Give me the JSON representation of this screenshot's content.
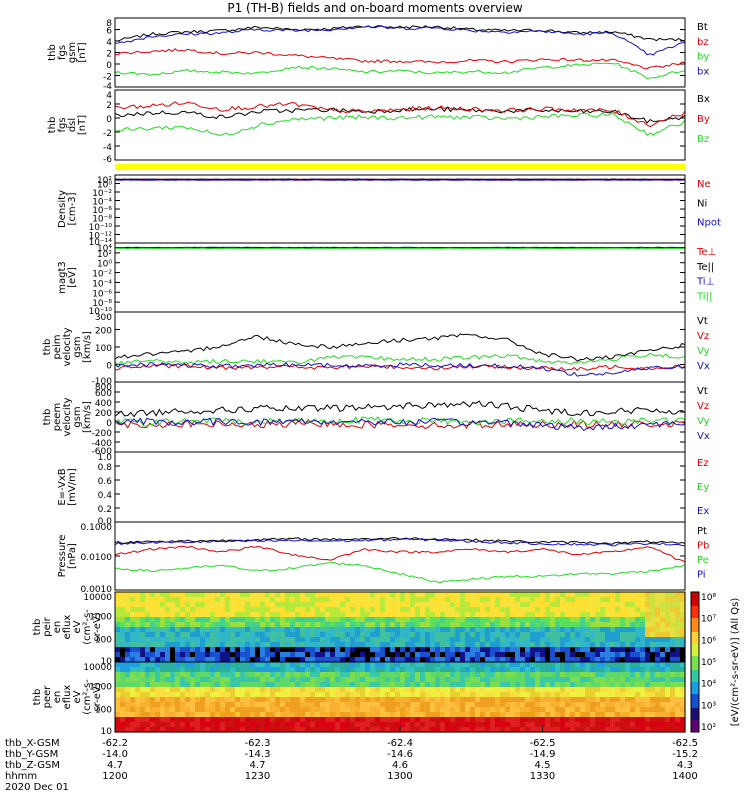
{
  "title": "P1 (TH-B) fields and on-board moments overview",
  "colors": {
    "black": "#000000",
    "red": "#e00000",
    "green": "#22dd22",
    "blue": "#1010cc",
    "yellow": "#ffff00"
  },
  "chart_data": [
    {
      "id": "fgs",
      "type": "line",
      "ylabel": [
        "thb",
        "fgs",
        "gsm",
        "[nT]"
      ],
      "yticks": [
        "8",
        "6",
        "4",
        "2",
        "0",
        "-2",
        "-4"
      ],
      "ylim": [
        -4,
        8
      ],
      "series": [
        {
          "name": "Bt",
          "color": "black",
          "values": [
            4.0,
            5.2,
            5.6,
            5.8,
            6.4,
            6.0,
            6.1,
            6.6,
            6.4,
            6.5,
            6.0,
            5.8,
            5.9,
            5.4,
            5.6,
            4.3,
            4.2
          ]
        },
        {
          "name": "bz",
          "color": "red",
          "values": [
            1.8,
            2.2,
            2.5,
            1.8,
            2.0,
            1.5,
            1.0,
            0.5,
            0.5,
            0.3,
            0.6,
            0.4,
            0.8,
            0.7,
            0.6,
            -0.8,
            0.2
          ]
        },
        {
          "name": "by",
          "color": "green",
          "values": [
            -1.4,
            -1.8,
            -1.2,
            -1.4,
            -1.6,
            -0.5,
            -0.8,
            -1.4,
            -1.2,
            -1.6,
            -1.3,
            -1.5,
            -0.6,
            -0.2,
            0.2,
            -2.5,
            -1.0
          ]
        },
        {
          "name": "bx",
          "color": "blue",
          "values": [
            3.5,
            4.8,
            5.2,
            5.4,
            6.0,
            5.8,
            6.0,
            6.5,
            6.2,
            6.3,
            5.8,
            5.6,
            5.7,
            5.2,
            5.4,
            1.5,
            3.8
          ]
        }
      ]
    },
    {
      "id": "fgs-dsl",
      "type": "line",
      "ylabel": [
        "thb",
        "fgs",
        "dsl",
        "[nT]"
      ],
      "yticks": [
        "4",
        "2",
        "0",
        "-2",
        "-4",
        "-6"
      ],
      "ylim": [
        -7,
        4
      ],
      "series": [
        {
          "name": "Bx",
          "color": "black",
          "values": [
            0.0,
            0.4,
            0.5,
            -0.3,
            0.6,
            0.8,
            0.9,
            0.6,
            0.9,
            1.0,
            0.8,
            0.7,
            0.8,
            0.6,
            0.6,
            -1.0,
            -0.2
          ]
        },
        {
          "name": "By",
          "color": "red",
          "values": [
            1.2,
            1.5,
            2.0,
            1.0,
            1.4,
            1.8,
            0.8,
            0.6,
            0.9,
            1.2,
            1.0,
            0.8,
            1.0,
            0.9,
            0.7,
            -1.5,
            0.5
          ]
        },
        {
          "name": "Bz",
          "color": "green",
          "values": [
            -2.4,
            -2.0,
            -1.8,
            -3.2,
            -1.5,
            -0.6,
            -0.4,
            -0.3,
            -0.4,
            -0.2,
            -0.3,
            -0.5,
            -0.2,
            0.0,
            0.1,
            -3.0,
            -1.0
          ]
        }
      ]
    },
    {
      "id": "density",
      "type": "line",
      "ylabel": [
        "Density",
        "[cm-3]"
      ],
      "yticks": [
        "10²",
        "10⁰",
        "10⁻²",
        "10⁻⁴",
        "10⁻⁶",
        "10⁻⁸",
        "10⁻¹⁰",
        "10⁻¹²",
        "10⁻¹⁴"
      ],
      "ylim": [
        -14,
        2
      ],
      "series": [
        {
          "name": "Ne",
          "color": "red",
          "values": [
            1.0,
            1.0,
            1.0,
            1.0,
            1.0,
            1.0,
            1.0,
            1.0,
            1.0,
            1.0,
            1.0,
            1.0,
            1.0,
            1.0,
            1.0,
            1.0,
            1.0
          ]
        },
        {
          "name": "Ni",
          "color": "black",
          "values": [
            1.0,
            1.0,
            1.0,
            1.0,
            1.0,
            1.0,
            1.0,
            1.0,
            1.0,
            1.0,
            1.0,
            1.0,
            1.0,
            1.0,
            1.0,
            1.0,
            1.0
          ]
        },
        {
          "name": "Npot",
          "color": "blue",
          "values": [
            0.8,
            0.8,
            0.8,
            0.8,
            0.8,
            0.8,
            0.8,
            0.8,
            0.8,
            0.8,
            0.8,
            0.8,
            0.8,
            0.8,
            0.8,
            0.8,
            0.8
          ]
        }
      ]
    },
    {
      "id": "temp",
      "type": "line",
      "ylabel": [
        "magt3",
        "[eV]"
      ],
      "yticks": [
        "10⁴",
        "10²",
        "10⁰",
        "10⁻²",
        "10⁻⁴",
        "10⁻⁶",
        "10⁻⁸",
        "10⁻¹⁰"
      ],
      "ylim": [
        -10,
        4
      ],
      "series": [
        {
          "name": "Te⊥",
          "color": "red",
          "values": [
            3.0,
            3.0,
            3.0,
            3.0,
            3.0,
            3.0,
            3.0,
            3.0,
            3.0,
            3.0,
            3.0,
            3.0,
            3.0,
            3.0,
            3.0,
            3.0,
            3.0
          ]
        },
        {
          "name": "Te||",
          "color": "black",
          "values": [
            3.0,
            3.0,
            3.0,
            3.0,
            3.0,
            3.0,
            3.0,
            3.0,
            3.0,
            3.0,
            3.0,
            3.0,
            3.0,
            3.0,
            3.0,
            3.0,
            3.0
          ]
        },
        {
          "name": "Ti⊥",
          "color": "blue",
          "values": [
            3.1,
            3.1,
            3.1,
            3.1,
            3.1,
            3.1,
            3.1,
            3.1,
            3.1,
            3.1,
            3.1,
            3.1,
            3.1,
            3.1,
            3.1,
            3.1,
            3.1
          ]
        },
        {
          "name": "Ti||",
          "color": "green",
          "values": [
            2.9,
            2.9,
            2.9,
            2.9,
            2.9,
            2.9,
            2.9,
            2.9,
            2.9,
            2.9,
            2.9,
            2.9,
            2.9,
            2.9,
            2.9,
            2.9,
            2.9
          ]
        }
      ]
    },
    {
      "id": "peim",
      "type": "line",
      "ylabel": [
        "thb",
        "peim",
        "velocity",
        "gsm",
        "[km/s]"
      ],
      "yticks": [
        "300",
        "200",
        "100",
        "0",
        "-100"
      ],
      "ylim": [
        -100,
        300
      ],
      "series": [
        {
          "name": "Vt",
          "color": "black",
          "values": [
            40,
            60,
            70,
            110,
            160,
            120,
            100,
            120,
            140,
            150,
            170,
            140,
            60,
            30,
            40,
            80,
            110
          ]
        },
        {
          "name": "Vz",
          "color": "red",
          "values": [
            -20,
            -10,
            -10,
            -20,
            -10,
            -15,
            -20,
            -10,
            -15,
            -20,
            -10,
            -15,
            -20,
            -30,
            -10,
            -20,
            -10
          ]
        },
        {
          "name": "Vy",
          "color": "green",
          "values": [
            10,
            20,
            10,
            20,
            20,
            10,
            40,
            40,
            30,
            30,
            40,
            50,
            20,
            10,
            30,
            60,
            40
          ]
        },
        {
          "name": "Vx",
          "color": "blue",
          "values": [
            -10,
            0,
            -5,
            -10,
            -5,
            0,
            -5,
            -10,
            0,
            -5,
            -5,
            -10,
            -20,
            -60,
            -50,
            -20,
            -10
          ]
        }
      ]
    },
    {
      "id": "peem",
      "type": "line",
      "ylabel": [
        "thb",
        "peem",
        "velocity",
        "gsm",
        "[km/s]"
      ],
      "yticks": [
        "800",
        "600",
        "400",
        "200",
        "0",
        "-200",
        "-400",
        "-600"
      ],
      "ylim": [
        -700,
        900
      ],
      "series": [
        {
          "name": "Vt",
          "color": "black",
          "values": [
            150,
            200,
            250,
            250,
            300,
            280,
            300,
            320,
            350,
            380,
            400,
            350,
            250,
            200,
            220,
            260,
            230
          ]
        },
        {
          "name": "Vz",
          "color": "red",
          "values": [
            -60,
            -80,
            -60,
            -70,
            -90,
            -60,
            -50,
            -80,
            -60,
            -100,
            -80,
            -60,
            -70,
            -60,
            -80,
            -60,
            -70
          ]
        },
        {
          "name": "Vy",
          "color": "green",
          "values": [
            0,
            -40,
            20,
            10,
            -20,
            30,
            0,
            40,
            20,
            10,
            -10,
            20,
            -20,
            10,
            0,
            30,
            10
          ]
        },
        {
          "name": "Vx",
          "color": "blue",
          "values": [
            -20,
            0,
            -30,
            0,
            -20,
            10,
            -10,
            0,
            -20,
            -10,
            -30,
            -20,
            -80,
            -150,
            -120,
            -60,
            -40
          ]
        }
      ]
    },
    {
      "id": "efield",
      "type": "line",
      "ylabel": [
        "E=-VxB",
        "[mV/m]"
      ],
      "yticks": [
        "1.0",
        "0.8",
        "0.6",
        "0.4",
        "0.2",
        "0.0"
      ],
      "ylim": [
        0,
        1
      ],
      "series": []
    },
    {
      "id": "pressure",
      "type": "line",
      "ylabel": [
        "Pressure",
        "[nPa]"
      ],
      "yticks": [
        "0.1000",
        "0.0100",
        "0.0010"
      ],
      "ylim": [
        -3.5,
        -1
      ],
      "series": [
        {
          "name": "Pt",
          "color": "black",
          "values": [
            -1.75,
            -1.72,
            -1.7,
            -1.68,
            -1.65,
            -1.62,
            -1.64,
            -1.62,
            -1.6,
            -1.62,
            -1.66,
            -1.7,
            -1.74,
            -1.75,
            -1.78,
            -1.72,
            -1.8
          ]
        },
        {
          "name": "Pb",
          "color": "red",
          "values": [
            -2.2,
            -2.0,
            -1.9,
            -2.1,
            -1.9,
            -2.2,
            -2.4,
            -2.0,
            -2.1,
            -2.1,
            -2.0,
            -2.1,
            -2.0,
            -2.2,
            -2.1,
            -1.9,
            -2.5
          ]
        },
        {
          "name": "Pe",
          "color": "green",
          "values": [
            -2.7,
            -2.8,
            -2.7,
            -2.6,
            -2.8,
            -2.7,
            -2.5,
            -2.6,
            -2.9,
            -3.2,
            -3.1,
            -3.0,
            -3.0,
            -2.9,
            -2.9,
            -2.8,
            -2.6
          ]
        },
        {
          "name": "Pi",
          "color": "blue",
          "values": [
            -1.8,
            -1.76,
            -1.74,
            -1.72,
            -1.7,
            -1.68,
            -1.7,
            -1.68,
            -1.64,
            -1.66,
            -1.72,
            -1.76,
            -1.8,
            -1.82,
            -1.84,
            -1.78,
            -1.84
          ]
        }
      ]
    },
    {
      "id": "peir",
      "type": "heatmap",
      "ylabel": [
        "thb",
        "peir",
        "en",
        "eflux",
        "eV",
        "(cm²-s-",
        "sr-eV)"
      ],
      "yticks": [
        "10000",
        "1000",
        "100",
        "10"
      ]
    },
    {
      "id": "peer",
      "type": "heatmap",
      "ylabel": [
        "thb",
        "peer",
        "en",
        "eflux",
        "eV",
        "(cm²-s-",
        "sr-eV)"
      ],
      "yticks": [
        "10000",
        "1000",
        "100",
        "10"
      ]
    }
  ],
  "colorbar": {
    "ticks": [
      "10⁸",
      "10⁷",
      "10⁶",
      "10⁵",
      "10⁴",
      "10³",
      "10²"
    ],
    "label": "[eV/(cm²-s-sr-eV)] (All Qs)"
  },
  "xaxis": {
    "rows": [
      {
        "label": "thb_X-GSM",
        "values": [
          "-62.2",
          "-62.3",
          "-62.4",
          "-62.5",
          "-62.5"
        ]
      },
      {
        "label": "thb_Y-GSM",
        "values": [
          "-14.0",
          "-14.3",
          "-14.6",
          "-14.9",
          "-15.2"
        ]
      },
      {
        "label": "thb_Z-GSM",
        "values": [
          "4.7",
          "4.7",
          "4.6",
          "4.5",
          "4.3"
        ]
      },
      {
        "label": "hhmm",
        "values": [
          "1200",
          "1230",
          "1300",
          "1330",
          "1400"
        ]
      }
    ],
    "date": "2020 Dec 01"
  }
}
